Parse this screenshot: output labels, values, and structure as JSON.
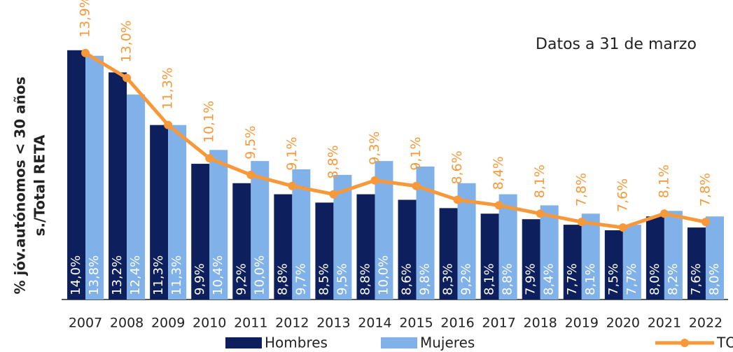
{
  "chart_data": {
    "type": "bar_line",
    "annotation": "Datos a 31 de marzo",
    "ylabel": [
      "% jóv.autónomos < 30 años",
      "s./Total RETA"
    ],
    "categories": [
      "2007",
      "2008",
      "2009",
      "2010",
      "2011",
      "2012",
      "2013",
      "2014",
      "2015",
      "2016",
      "2017",
      "2018",
      "2019",
      "2020",
      "2021",
      "2022"
    ],
    "ylim": [
      5,
      14.5
    ],
    "series": [
      {
        "name": "Hombres",
        "type": "bar",
        "color": "#0d1f5c",
        "values": [
          14.0,
          13.2,
          11.3,
          9.9,
          9.2,
          8.8,
          8.5,
          8.8,
          8.6,
          8.3,
          8.1,
          7.9,
          7.7,
          7.5,
          8.0,
          7.6
        ],
        "value_labels": [
          "14,0%",
          "13,2%",
          "11,3%",
          "9,9%",
          "9,2%",
          "8,8%",
          "8,5%",
          "8,8%",
          "8,6%",
          "8,3%",
          "8,1%",
          "7,9%",
          "7,7%",
          "7,5%",
          "8,0%",
          "7,6%"
        ]
      },
      {
        "name": "Mujeres",
        "type": "bar",
        "color": "#80b1e8",
        "values": [
          13.8,
          12.4,
          11.3,
          10.4,
          10.0,
          9.7,
          9.5,
          10.0,
          9.8,
          9.2,
          8.8,
          8.4,
          8.1,
          7.7,
          8.2,
          8.0
        ],
        "value_labels": [
          "13,8%",
          "12,4%",
          "11,3%",
          "10,4%",
          "10,0%",
          "9,7%",
          "9,5%",
          "10,0%",
          "9,8%",
          "9,2%",
          "8,8%",
          "8,4%",
          "8,1%",
          "7,7%",
          "8,2%",
          "8,0%"
        ]
      },
      {
        "name": "TOTAL",
        "type": "line",
        "color": "#f7993a",
        "values": [
          13.9,
          13.0,
          11.3,
          10.1,
          9.5,
          9.1,
          8.8,
          9.3,
          9.1,
          8.6,
          8.4,
          8.1,
          7.8,
          7.6,
          8.1,
          7.8
        ],
        "value_labels": [
          "13,9%",
          "13,0%",
          "11,3%",
          "10,1%",
          "9,5%",
          "9,1%",
          "8,8%",
          "9,3%",
          "9,1%",
          "8,6%",
          "8,4%",
          "8,1%",
          "7,8%",
          "7,6%",
          "8,1%",
          "7,8%"
        ]
      }
    ]
  }
}
